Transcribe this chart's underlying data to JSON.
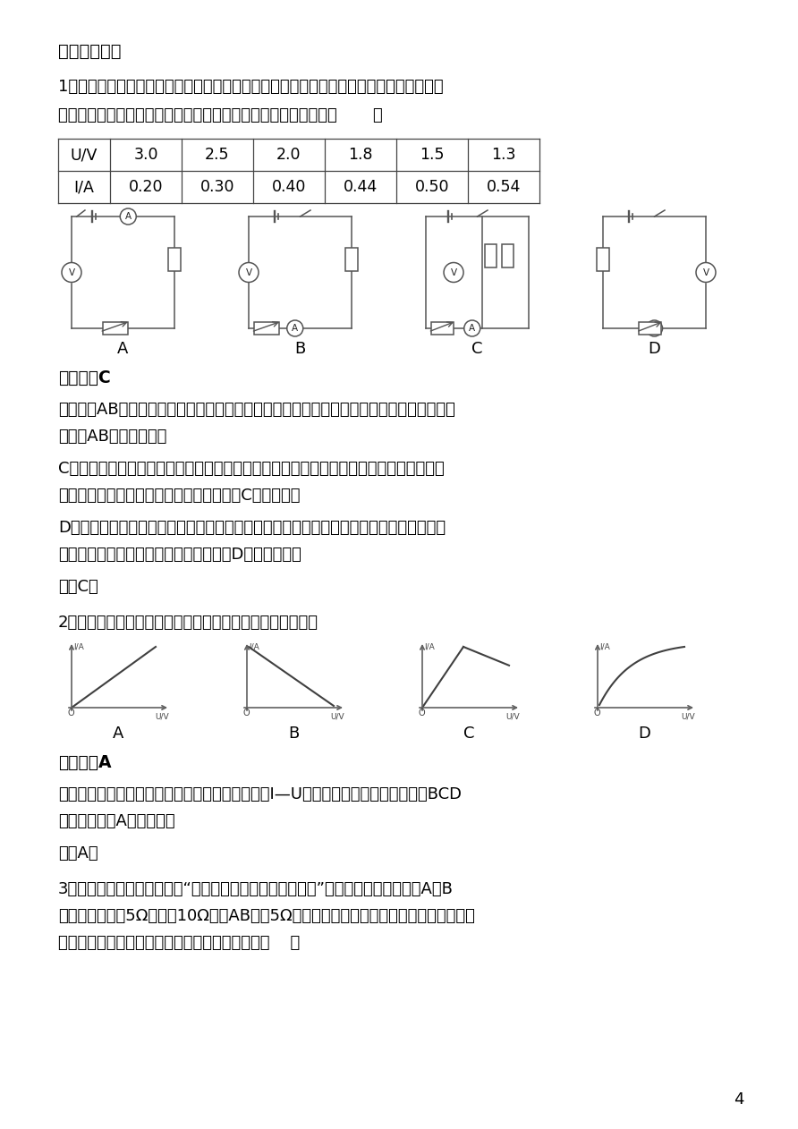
{
  "bg_color": "#ffffff",
  "text_color": "#000000",
  "page_width": 8.92,
  "page_height": 12.62,
  "section_title": "二、提升训练",
  "q1_text1": "1．某学习小组在一次实验探究中利用电压表和电流表测得了多组数据，记录如下表。请根",
  "q1_text2": "据表中给出的数据，判断分析出他们实验时的电路可能是图中的（       ）",
  "table_headers": [
    "U/V",
    "3.0",
    "2.5",
    "2.0",
    "1.8",
    "1.5",
    "1.3"
  ],
  "table_row2": [
    "I/A",
    "0.20",
    "0.30",
    "0.40",
    "0.44",
    "0.50",
    "0.54"
  ],
  "circuit_labels": [
    "A",
    "B",
    "C",
    "D"
  ],
  "answer1_label": "【答案】C",
  "analysis1_title": "【解析】AB．电压表均测量电源电压，当滑动变阔器的滑片移动时，电压表示数不会发生变",
  "analysis1_line2": "化，故AB不符合题意；",
  "analysis1_line3": "C．电压表测的是滑动变阔器的电压，当滑动变阔器的电阔变小是，它两端的电压变小，电",
  "analysis1_line4": "路中的电流增大，与表中数据规律相符，故C符合题意；",
  "analysis1_line5": "D．电压表测的是定值电阔的电压，电流表也是通过定值电阔的电流，当电阔一定时，电流",
  "analysis1_line6": "与电压成正比，与表中数据规律不符，故D不符合题意。",
  "answer1_end": "故选C。",
  "q2_text": "2．图中能正确描述，电阔一定时，电流随电压变化的图像是",
  "graph_labels": [
    "A",
    "B",
    "C",
    "D"
  ],
  "answer2_label": "【答案】A",
  "analysis2_line1": "【解析】当电阔一定时，电路与电压成正比，故其I—U图像为一条过原点的直线，故BCD",
  "analysis2_line2": "不符合题意，A符合题意。",
  "answer2_end": "故选A。",
  "q3_text1": "3．小刚用如图所示电路探究“一段电路中电流跟电阔的关系”。在此实验过程中，当A、B",
  "q3_text2": "两点间的电阔〔5Ω更换为10Ω后（AB间接5Ω电阔器时变阔器滑片位置如图所示），为了",
  "q3_text3": "探究上述问题，他接下来应该采取的唯一操作是（    ）",
  "page_number": "4"
}
